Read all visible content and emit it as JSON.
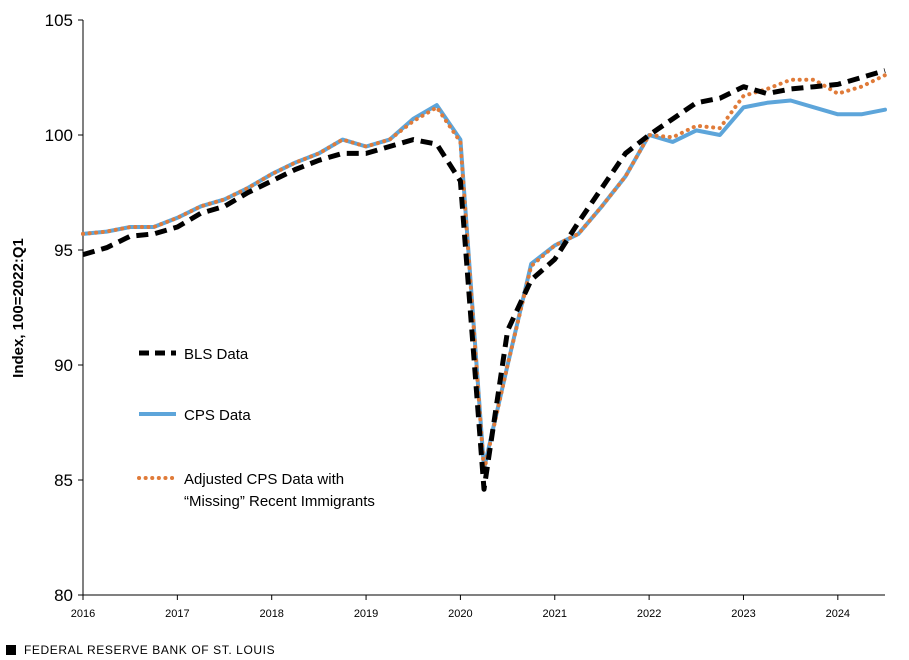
{
  "chart_data": {
    "type": "line",
    "title": "",
    "ylabel": "Index, 100=2022:Q1",
    "xlabel": "",
    "ylim": [
      80,
      105
    ],
    "xlim": [
      2016.0,
      2024.5
    ],
    "y_ticks": [
      80,
      85,
      90,
      95,
      100,
      105
    ],
    "x_ticks": [
      "2016",
      "2017",
      "2018",
      "2019",
      "2020",
      "2021",
      "2022",
      "2023",
      "2024"
    ],
    "grid": false,
    "legend_position": "left-middle",
    "series": [
      {
        "name": "BLS Data",
        "color": "#000000",
        "style": "dashed",
        "x": [
          2016.0,
          2016.25,
          2016.5,
          2016.75,
          2017.0,
          2017.25,
          2017.5,
          2017.75,
          2018.0,
          2018.25,
          2018.5,
          2018.75,
          2019.0,
          2019.25,
          2019.5,
          2019.75,
          2020.0,
          2020.25,
          2020.5,
          2020.75,
          2021.0,
          2021.25,
          2021.5,
          2021.75,
          2022.0,
          2022.25,
          2022.5,
          2022.75,
          2023.0,
          2023.25,
          2023.5,
          2023.75,
          2024.0,
          2024.25,
          2024.5
        ],
        "y": [
          94.8,
          95.1,
          95.6,
          95.7,
          96.0,
          96.6,
          96.9,
          97.5,
          98.0,
          98.5,
          98.9,
          99.2,
          99.2,
          99.5,
          99.8,
          99.6,
          98.0,
          84.6,
          91.5,
          93.7,
          94.6,
          96.2,
          97.7,
          99.2,
          100.0,
          100.7,
          101.4,
          101.6,
          102.1,
          101.8,
          102.0,
          102.1,
          102.2,
          102.5,
          102.8
        ]
      },
      {
        "name": "CPS Data",
        "color": "#5da5da",
        "style": "solid",
        "x": [
          2016.0,
          2016.25,
          2016.5,
          2016.75,
          2017.0,
          2017.25,
          2017.5,
          2017.75,
          2018.0,
          2018.25,
          2018.5,
          2018.75,
          2019.0,
          2019.25,
          2019.5,
          2019.75,
          2020.0,
          2020.25,
          2020.5,
          2020.75,
          2021.0,
          2021.25,
          2021.5,
          2021.75,
          2022.0,
          2022.25,
          2022.5,
          2022.75,
          2023.0,
          2023.25,
          2023.5,
          2023.75,
          2024.0,
          2024.25,
          2024.5
        ],
        "y": [
          95.7,
          95.8,
          96.0,
          96.0,
          96.4,
          96.9,
          97.2,
          97.7,
          98.3,
          98.8,
          99.2,
          99.8,
          99.5,
          99.8,
          100.7,
          101.3,
          99.8,
          85.5,
          90.0,
          94.4,
          95.2,
          95.7,
          96.9,
          98.2,
          100.0,
          99.7,
          100.2,
          100.0,
          101.2,
          101.4,
          101.5,
          101.2,
          100.9,
          100.9,
          101.1
        ]
      },
      {
        "name": "Adjusted CPS Data with “Missing” Recent Immigrants",
        "name_line1": "Adjusted CPS Data with",
        "name_line2": "“Missing” Recent Immigrants",
        "color": "#e07b39",
        "style": "dotted",
        "x": [
          2016.0,
          2016.25,
          2016.5,
          2016.75,
          2017.0,
          2017.25,
          2017.5,
          2017.75,
          2018.0,
          2018.25,
          2018.5,
          2018.75,
          2019.0,
          2019.25,
          2019.5,
          2019.75,
          2020.0,
          2020.25,
          2020.5,
          2020.75,
          2021.0,
          2021.25,
          2021.5,
          2021.75,
          2022.0,
          2022.25,
          2022.5,
          2022.75,
          2023.0,
          2023.25,
          2023.5,
          2023.75,
          2024.0,
          2024.25,
          2024.5
        ],
        "y": [
          95.7,
          95.8,
          96.0,
          96.0,
          96.4,
          96.9,
          97.2,
          97.7,
          98.3,
          98.8,
          99.2,
          99.8,
          99.5,
          99.8,
          100.6,
          101.2,
          99.7,
          85.4,
          90.0,
          94.3,
          95.2,
          95.7,
          96.9,
          98.2,
          100.0,
          99.9,
          100.4,
          100.3,
          101.7,
          102.0,
          102.4,
          102.4,
          101.8,
          102.1,
          102.6
        ]
      }
    ]
  },
  "footer": {
    "source": "FEDERAL RESERVE BANK OF ST. LOUIS"
  }
}
